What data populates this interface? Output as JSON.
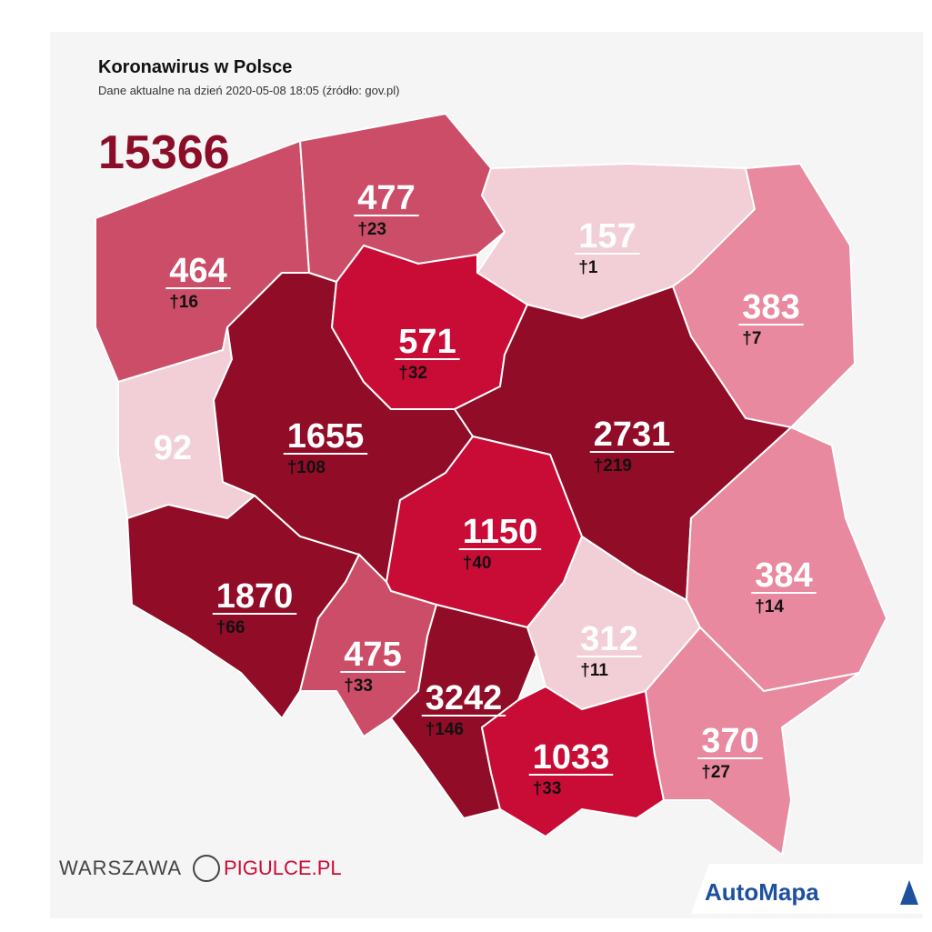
{
  "header": {
    "title": "Koronawirus w Polsce",
    "subtitle": "Dane aktualne na dzień 2020-05-08 18:05 (źródło: gov.pl)",
    "total": 15366,
    "total_color": "#8b0d28"
  },
  "regions": [
    {
      "cases": 464,
      "deaths": "†16",
      "color": "#cc4d68"
    },
    {
      "cases": 477,
      "deaths": "†23",
      "color": "#cc4d68"
    },
    {
      "cases": 157,
      "deaths": "†1",
      "color": "#f2cfd7"
    },
    {
      "cases": 383,
      "deaths": "†7",
      "color": "#e8899f"
    },
    {
      "cases": 92,
      "color": "#f2cfd7"
    },
    {
      "cases": 1655,
      "deaths": "†108",
      "color": "#900c27"
    },
    {
      "cases": 571,
      "deaths": "†32",
      "color": "#c90c35"
    },
    {
      "cases": 2731,
      "deaths": "†219",
      "color": "#900c27"
    },
    {
      "cases": 1150,
      "deaths": "†40",
      "color": "#c90c35"
    },
    {
      "cases": 1870,
      "deaths": "†66",
      "color": "#900c27"
    },
    {
      "cases": 475,
      "deaths": "†33",
      "color": "#cc4d68"
    },
    {
      "cases": 3242,
      "deaths": "†146",
      "color": "#900c27"
    },
    {
      "cases": 312,
      "deaths": "†11",
      "color": "#f2cfd7"
    },
    {
      "cases": 384,
      "deaths": "†14",
      "color": "#e8899f"
    },
    {
      "cases": 1033,
      "deaths": "†33",
      "color": "#c90c35"
    },
    {
      "cases": 370,
      "deaths": "†27",
      "color": "#e8899f"
    }
  ],
  "logos": {
    "left_a": "WARSZAWA",
    "left_b": "PIGULCE.PL",
    "right": "AutoMapa"
  }
}
